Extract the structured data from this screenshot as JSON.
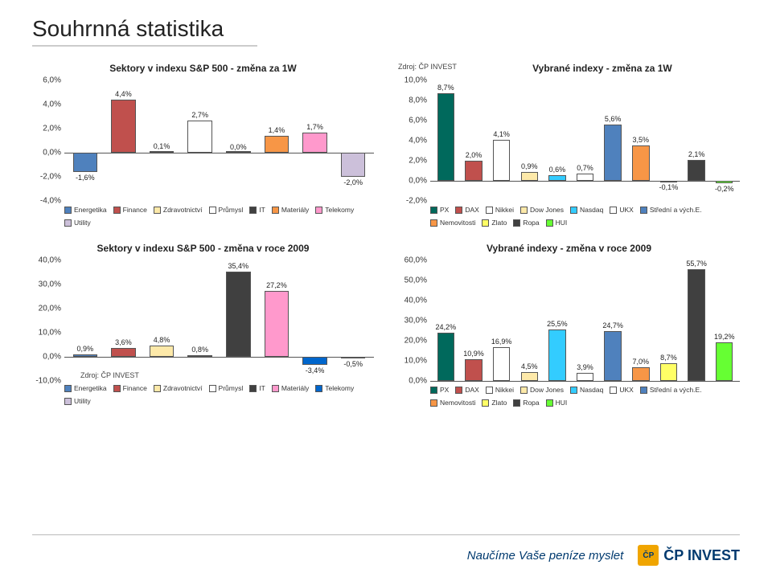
{
  "page_title": "Souhrnná statistika",
  "source_label": "Zdroj: ČP INVEST",
  "footer_slogan": "Naučíme Vaše peníze myslet",
  "footer_brand": "ČP INVEST",
  "chart1": {
    "title": "Sektory v indexu S&P 500 - změna za 1W",
    "ylim": [
      -4.0,
      6.0
    ],
    "ytick_step": 2.0,
    "bars": [
      {
        "label": "Energetika",
        "value": -1.6,
        "text": "-1,6%",
        "color": "#4f81bd"
      },
      {
        "label": "Finance",
        "value": 4.4,
        "text": "4,4%",
        "color": "#c0504d"
      },
      {
        "label": "Zdravotnictví",
        "value": 0.1,
        "text": "0,1%",
        "color": "#fde9a9"
      },
      {
        "label": "Průmysl",
        "value": 2.7,
        "text": "2,7%",
        "color": "#ffffff"
      },
      {
        "label": "IT",
        "value": 0.0,
        "text": "0,0%",
        "color": "#404040"
      },
      {
        "label": "Materiály",
        "value": 1.4,
        "text": "1,4%",
        "color": "#f79646"
      },
      {
        "label": "Telekomy",
        "value": 1.7,
        "text": "1,7%",
        "color": "#ff99cc"
      },
      {
        "label": "Utility",
        "value": -2.0,
        "text": "-2,0%",
        "color": "#ccc0da"
      }
    ]
  },
  "chart2": {
    "title": "Vybrané indexy - změna za 1W",
    "ylim": [
      -2.0,
      10.0
    ],
    "ytick_step": 2.0,
    "bars": [
      {
        "label": "PX",
        "value": 8.7,
        "text": "8,7%",
        "color": "#00695c"
      },
      {
        "label": "DAX",
        "value": 2.0,
        "text": "2,0%",
        "color": "#c0504d"
      },
      {
        "label": "Nikkei",
        "value": 4.1,
        "text": "4,1%",
        "color": "#ffffff"
      },
      {
        "label": "Dow Jones",
        "value": 0.9,
        "text": "0,9%",
        "color": "#fde9a9"
      },
      {
        "label": "Nasdaq",
        "value": 0.6,
        "text": "0,6%",
        "color": "#33ccff"
      },
      {
        "label": "UKX",
        "value": 0.7,
        "text": "0,7%",
        "color": "#ffffff"
      },
      {
        "label": "Střední a vých.E.",
        "value": 5.6,
        "text": "5,6%",
        "color": "#4f81bd"
      },
      {
        "label": "Nemovitosti",
        "value": 3.5,
        "text": "3,5%",
        "color": "#f79646"
      },
      {
        "label": "Zlato",
        "value": -0.1,
        "text": "-0,1%",
        "color": "#ffff66"
      },
      {
        "label": "Ropa",
        "value": 2.1,
        "text": "2,1%",
        "color": "#404040"
      },
      {
        "label": "HUI",
        "value": -0.2,
        "text": "-0,2%",
        "color": "#66ff33"
      }
    ]
  },
  "chart3": {
    "title": "Sektory v indexu S&P 500 - změna v roce 2009",
    "ylim": [
      -10.0,
      40.0
    ],
    "ytick_step": 10.0,
    "bars": [
      {
        "label": "Energetika",
        "value": 0.9,
        "text": "0,9%",
        "color": "#4f81bd"
      },
      {
        "label": "Finance",
        "value": 3.6,
        "text": "3,6%",
        "color": "#c0504d"
      },
      {
        "label": "Zdravotnictví",
        "value": 4.8,
        "text": "4,8%",
        "color": "#fde9a9"
      },
      {
        "label": "Průmysl",
        "value": 0.8,
        "text": "0,8%",
        "color": "#ffffff"
      },
      {
        "label": "IT",
        "value": 35.4,
        "text": "35,4%",
        "color": "#404040"
      },
      {
        "label": "Materiály",
        "value": 27.2,
        "text": "27,2%",
        "color": "#ff99cc"
      },
      {
        "label": "Telekomy",
        "value": -3.4,
        "text": "-3,4%",
        "color": "#0066cc"
      },
      {
        "label": "Utility",
        "value": -0.5,
        "text": "-0,5%",
        "color": "#ccc0da"
      }
    ]
  },
  "chart4": {
    "title": "Vybrané indexy - změna v roce 2009",
    "ylim": [
      0.0,
      60.0
    ],
    "ytick_step": 10.0,
    "bars": [
      {
        "label": "PX",
        "value": 24.2,
        "text": "24,2%",
        "color": "#00695c"
      },
      {
        "label": "DAX",
        "value": 10.9,
        "text": "10,9%",
        "color": "#c0504d"
      },
      {
        "label": "Nikkei",
        "value": 16.9,
        "text": "16,9%",
        "color": "#ffffff"
      },
      {
        "label": "Dow Jones",
        "value": 4.5,
        "text": "4,5%",
        "color": "#fde9a9"
      },
      {
        "label": "Nasdaq",
        "value": 25.5,
        "text": "25,5%",
        "color": "#33ccff"
      },
      {
        "label": "UKX",
        "value": 3.9,
        "text": "3,9%",
        "color": "#ffffff"
      },
      {
        "label": "Střední a vých.E.",
        "value": 24.7,
        "text": "24,7%",
        "color": "#4f81bd"
      },
      {
        "label": "Nemovitosti",
        "value": 7.0,
        "text": "7,0%",
        "color": "#f79646"
      },
      {
        "label": "Zlato",
        "value": 8.7,
        "text": "8,7%",
        "color": "#ffff66"
      },
      {
        "label": "Ropa",
        "value": 55.7,
        "text": "55,7%",
        "color": "#404040"
      },
      {
        "label": "HUI",
        "value": 19.2,
        "text": "19,2%",
        "color": "#66ff33"
      }
    ]
  }
}
